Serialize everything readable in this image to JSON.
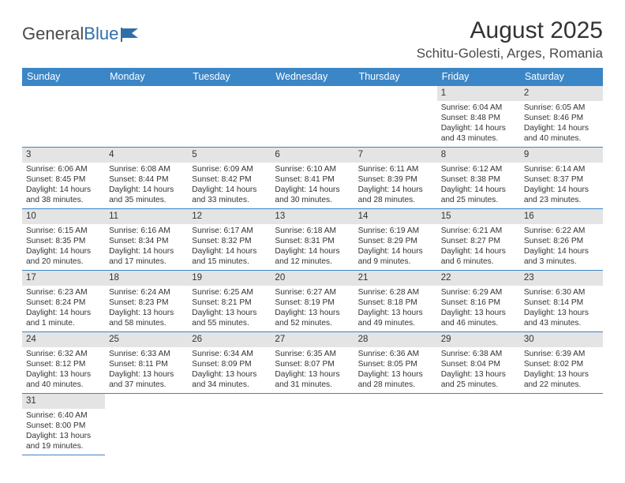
{
  "logo": {
    "text1": "General",
    "text2": "Blue",
    "icon_color": "#2f6fa8"
  },
  "title": "August 2025",
  "location": "Schitu-Golesti, Arges, Romania",
  "colors": {
    "header_bg": "#3b86c6",
    "header_text": "#ffffff",
    "daynum_bg": "#e4e4e4",
    "border": "#3b86c6",
    "text": "#333333",
    "background": "#ffffff"
  },
  "dayNames": [
    "Sunday",
    "Monday",
    "Tuesday",
    "Wednesday",
    "Thursday",
    "Friday",
    "Saturday"
  ],
  "grid": {
    "leadingBlanks": 5,
    "days": [
      {
        "n": 1,
        "sr": "6:04 AM",
        "ss": "8:48 PM",
        "dl": "14 hours and 43 minutes."
      },
      {
        "n": 2,
        "sr": "6:05 AM",
        "ss": "8:46 PM",
        "dl": "14 hours and 40 minutes."
      },
      {
        "n": 3,
        "sr": "6:06 AM",
        "ss": "8:45 PM",
        "dl": "14 hours and 38 minutes."
      },
      {
        "n": 4,
        "sr": "6:08 AM",
        "ss": "8:44 PM",
        "dl": "14 hours and 35 minutes."
      },
      {
        "n": 5,
        "sr": "6:09 AM",
        "ss": "8:42 PM",
        "dl": "14 hours and 33 minutes."
      },
      {
        "n": 6,
        "sr": "6:10 AM",
        "ss": "8:41 PM",
        "dl": "14 hours and 30 minutes."
      },
      {
        "n": 7,
        "sr": "6:11 AM",
        "ss": "8:39 PM",
        "dl": "14 hours and 28 minutes."
      },
      {
        "n": 8,
        "sr": "6:12 AM",
        "ss": "8:38 PM",
        "dl": "14 hours and 25 minutes."
      },
      {
        "n": 9,
        "sr": "6:14 AM",
        "ss": "8:37 PM",
        "dl": "14 hours and 23 minutes."
      },
      {
        "n": 10,
        "sr": "6:15 AM",
        "ss": "8:35 PM",
        "dl": "14 hours and 20 minutes."
      },
      {
        "n": 11,
        "sr": "6:16 AM",
        "ss": "8:34 PM",
        "dl": "14 hours and 17 minutes."
      },
      {
        "n": 12,
        "sr": "6:17 AM",
        "ss": "8:32 PM",
        "dl": "14 hours and 15 minutes."
      },
      {
        "n": 13,
        "sr": "6:18 AM",
        "ss": "8:31 PM",
        "dl": "14 hours and 12 minutes."
      },
      {
        "n": 14,
        "sr": "6:19 AM",
        "ss": "8:29 PM",
        "dl": "14 hours and 9 minutes."
      },
      {
        "n": 15,
        "sr": "6:21 AM",
        "ss": "8:27 PM",
        "dl": "14 hours and 6 minutes."
      },
      {
        "n": 16,
        "sr": "6:22 AM",
        "ss": "8:26 PM",
        "dl": "14 hours and 3 minutes."
      },
      {
        "n": 17,
        "sr": "6:23 AM",
        "ss": "8:24 PM",
        "dl": "14 hours and 1 minute."
      },
      {
        "n": 18,
        "sr": "6:24 AM",
        "ss": "8:23 PM",
        "dl": "13 hours and 58 minutes."
      },
      {
        "n": 19,
        "sr": "6:25 AM",
        "ss": "8:21 PM",
        "dl": "13 hours and 55 minutes."
      },
      {
        "n": 20,
        "sr": "6:27 AM",
        "ss": "8:19 PM",
        "dl": "13 hours and 52 minutes."
      },
      {
        "n": 21,
        "sr": "6:28 AM",
        "ss": "8:18 PM",
        "dl": "13 hours and 49 minutes."
      },
      {
        "n": 22,
        "sr": "6:29 AM",
        "ss": "8:16 PM",
        "dl": "13 hours and 46 minutes."
      },
      {
        "n": 23,
        "sr": "6:30 AM",
        "ss": "8:14 PM",
        "dl": "13 hours and 43 minutes."
      },
      {
        "n": 24,
        "sr": "6:32 AM",
        "ss": "8:12 PM",
        "dl": "13 hours and 40 minutes."
      },
      {
        "n": 25,
        "sr": "6:33 AM",
        "ss": "8:11 PM",
        "dl": "13 hours and 37 minutes."
      },
      {
        "n": 26,
        "sr": "6:34 AM",
        "ss": "8:09 PM",
        "dl": "13 hours and 34 minutes."
      },
      {
        "n": 27,
        "sr": "6:35 AM",
        "ss": "8:07 PM",
        "dl": "13 hours and 31 minutes."
      },
      {
        "n": 28,
        "sr": "6:36 AM",
        "ss": "8:05 PM",
        "dl": "13 hours and 28 minutes."
      },
      {
        "n": 29,
        "sr": "6:38 AM",
        "ss": "8:04 PM",
        "dl": "13 hours and 25 minutes."
      },
      {
        "n": 30,
        "sr": "6:39 AM",
        "ss": "8:02 PM",
        "dl": "13 hours and 22 minutes."
      },
      {
        "n": 31,
        "sr": "6:40 AM",
        "ss": "8:00 PM",
        "dl": "13 hours and 19 minutes."
      }
    ]
  },
  "labels": {
    "sunrise": "Sunrise:",
    "sunset": "Sunset:",
    "daylight": "Daylight:"
  }
}
